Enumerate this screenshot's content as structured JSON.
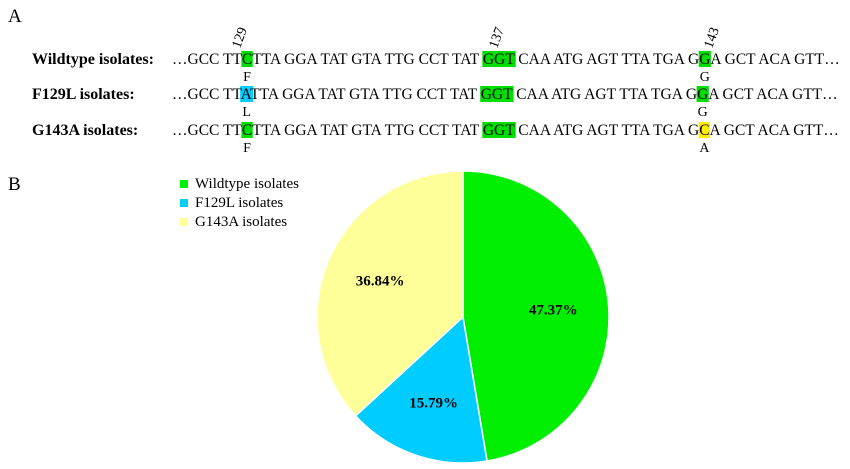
{
  "panel_a": {
    "label": "A",
    "positions": [
      "129",
      "137",
      "143"
    ],
    "prefix": "…GCC TT",
    "mid": "TTA GGA TAT GTA TTG CCT TAT ",
    "codon137": "GGT",
    "after137": " CAA ATG AGT TTA TGA G",
    "suffix": "A GCT ACA GTT…",
    "rows": [
      {
        "name": "Wildtype isolates:",
        "b129": "C",
        "b143": "G",
        "aa129": "F",
        "aa143": "G"
      },
      {
        "name": "F129L isolates:",
        "b129": "A",
        "b143": "G",
        "aa129": "L",
        "aa143": "G"
      },
      {
        "name": "G143A isolates:",
        "b129": "C",
        "b143": "C",
        "aa129": "F",
        "aa143": "A"
      }
    ]
  },
  "panel_b": {
    "label": "B"
  },
  "colors": {
    "green": "#00dd00",
    "cyan": "#00ccff",
    "yellow": "#ffff99",
    "bright_yellow": "#ffee00"
  },
  "chart_data": {
    "type": "pie",
    "start_angle_deg": 0,
    "direction": "clockwise",
    "legend_position": "top-left",
    "slices": [
      {
        "name": "Wildtype isolates",
        "value": 47.37,
        "label": "47.37%",
        "color": "#00ee00"
      },
      {
        "name": "F129L isolates",
        "value": 15.79,
        "label": "15.79%",
        "color": "#00ccff"
      },
      {
        "name": "G143A  isolates",
        "value": 36.84,
        "label": "36.84%",
        "color": "#ffff99"
      }
    ]
  }
}
